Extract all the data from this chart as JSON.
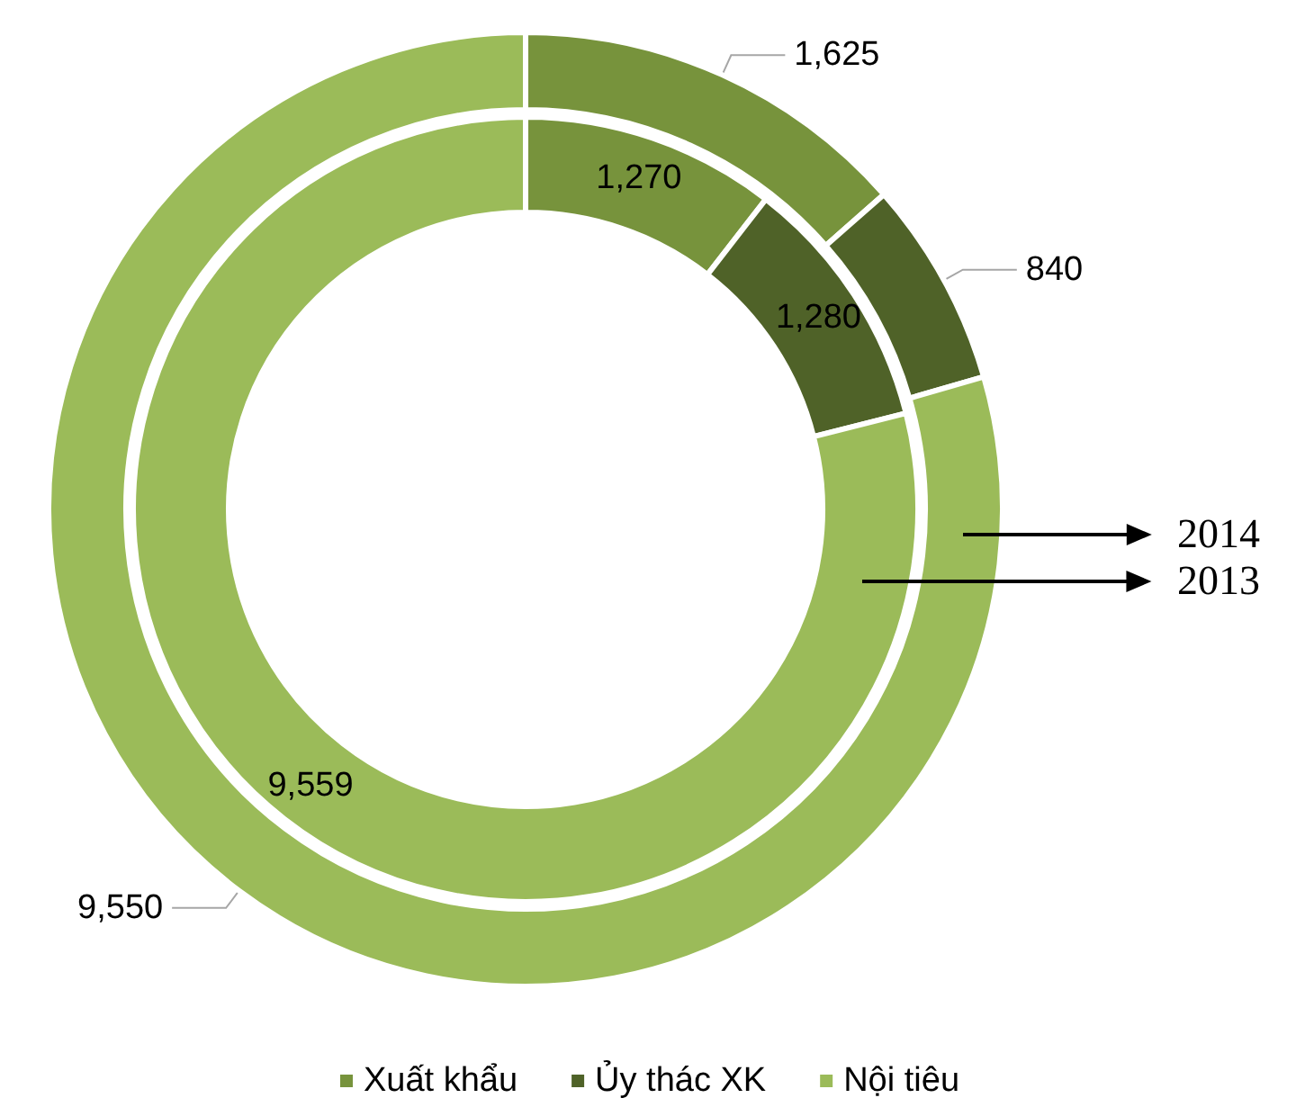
{
  "chart_data": [
    {
      "type": "donut",
      "title": "2014",
      "categories": [
        "Xuất khẩu",
        "Ủy thác XK",
        "Nội tiêu"
      ],
      "colors": [
        "#77933c",
        "#4f6228",
        "#9bbb59"
      ],
      "values": [
        1625,
        840,
        9550
      ],
      "value_labels": [
        "1,625",
        "840",
        "9,550"
      ],
      "legend": "bottom"
    },
    {
      "type": "donut",
      "title": "2013",
      "categories": [
        null,
        null,
        null
      ],
      "colors": [
        "#77933c",
        "#4f6228",
        "#9bbb59"
      ],
      "values": [
        1270,
        1280,
        9559
      ],
      "value_labels": [
        "1,270",
        "1,280",
        "9,559"
      ]
    }
  ]
}
